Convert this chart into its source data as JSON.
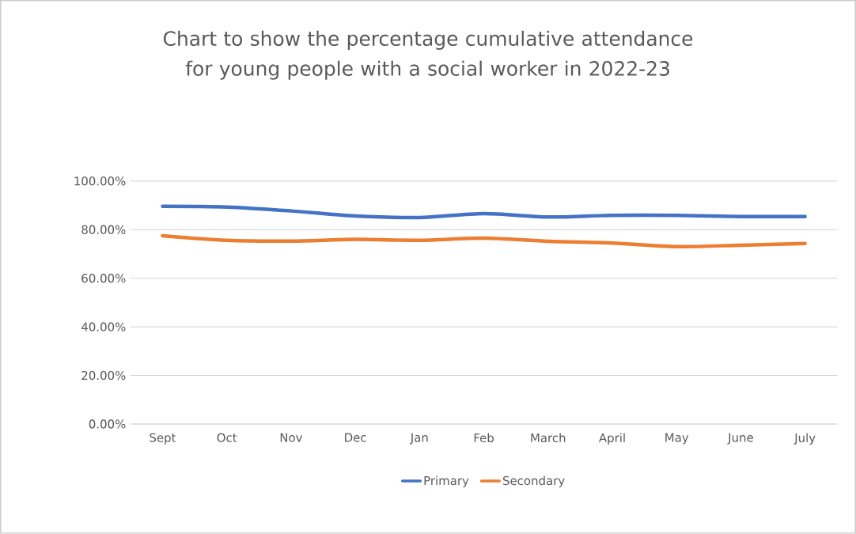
{
  "chart_data": {
    "type": "line",
    "title": "Chart to show the percentage cumulative attendance for young people with a social worker in 2022-23",
    "categories": [
      "Sept",
      "Oct",
      "Nov",
      "Dec",
      "Jan",
      "Feb",
      "March",
      "April",
      "May",
      "June",
      "July"
    ],
    "series": [
      {
        "name": "Primary",
        "color": "#4472c4",
        "values": [
          89.6,
          89.3,
          87.7,
          85.6,
          85.0,
          86.6,
          85.2,
          85.9,
          85.9,
          85.4,
          85.4
        ]
      },
      {
        "name": "Secondary",
        "color": "#ed7d31",
        "values": [
          77.5,
          75.6,
          75.3,
          76.0,
          75.6,
          76.5,
          75.2,
          74.5,
          73.0,
          73.6,
          74.3
        ]
      }
    ],
    "ylim": [
      0,
      100
    ],
    "yticks": [
      {
        "value": 0,
        "label": "0.00%"
      },
      {
        "value": 20,
        "label": "20.00%"
      },
      {
        "value": 40,
        "label": "40.00%"
      },
      {
        "value": 60,
        "label": "60.00%"
      },
      {
        "value": 80,
        "label": "80.00%"
      },
      {
        "value": 100,
        "label": "100.00%"
      }
    ],
    "grid": "y",
    "legend": "bottom",
    "marker": "none",
    "line_style": "solid"
  }
}
